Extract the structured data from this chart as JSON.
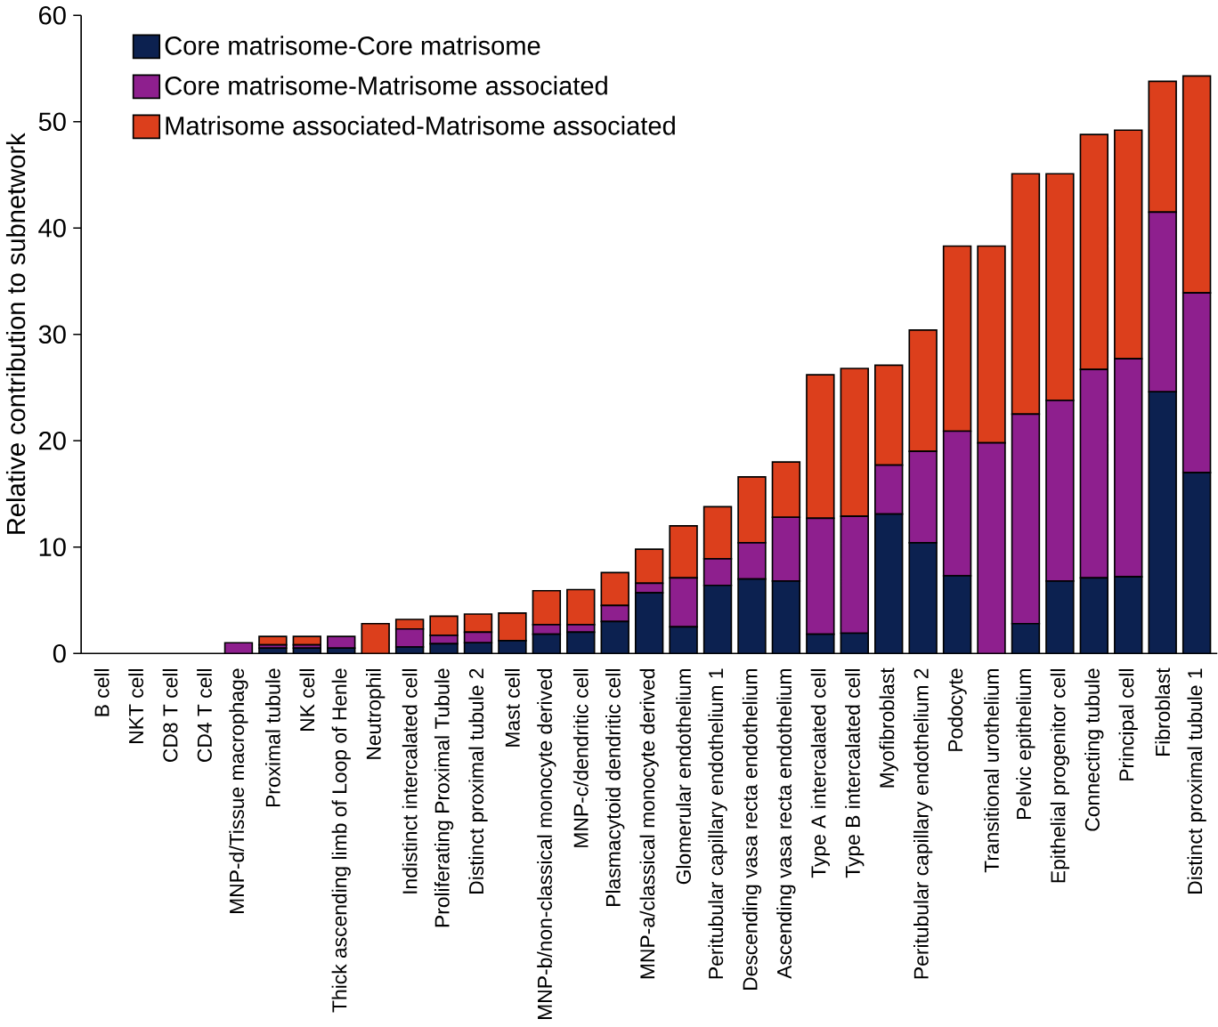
{
  "chart_data": {
    "type": "bar",
    "stacked": true,
    "ylabel": "Relative contribution to subnetwork",
    "categories": [
      "B cell",
      "NKT cell",
      "CD8 T cell",
      "CD4 T cell",
      "MNP-d/Tissue macrophage",
      "Proximal tubule",
      "NK cell",
      "Thick ascending limb of Loop of Henle",
      "Neutrophil",
      "Indistinct intercalated cell",
      "Proliferating Proximal Tubule",
      "Distinct proximal tubule 2",
      "Mast cell",
      "MNP-b/non-classical monocyte derived",
      "MNP-c/dendritic cell",
      "Plasmacytoid dendritic cell",
      "MNP-a/classical monocyte derived",
      "Glomerular endothelium",
      "Peritubular capillary endothelium 1",
      "Descending vasa recta endothelium",
      "Ascending vasa recta endothelium",
      "Type A intercalated cell",
      "Type B intercalated cell",
      "Myofibroblast",
      "Peritubular capillary endothelium 2",
      "Podocyte",
      "Transitional urothelium",
      "Pelvic epithelium",
      "Epithelial progenitor cell",
      "Connecting tubule",
      "Principal cell",
      "Fibroblast",
      "Distinct proximal tubule 1"
    ],
    "series": [
      {
        "name": "Core matrisome-Core matrisome",
        "color": "#0c2150",
        "values": [
          0,
          0,
          0,
          0,
          0,
          0.5,
          0.5,
          0.5,
          0,
          0.6,
          0.9,
          1.0,
          1.2,
          1.8,
          2.0,
          3.0,
          5.7,
          2.5,
          6.4,
          7.0,
          6.8,
          1.8,
          1.9,
          13.1,
          10.4,
          7.3,
          0,
          2.8,
          6.8,
          7.1,
          7.2,
          24.6,
          17.0
        ]
      },
      {
        "name": "Core matrisome-Matrisome associated",
        "color": "#8e1f8e",
        "values": [
          0,
          0,
          0,
          0,
          1.0,
          0.3,
          0.3,
          1.1,
          0,
          1.7,
          0.8,
          1.0,
          null,
          0.9,
          0.7,
          1.5,
          0.9,
          4.6,
          2.5,
          3.4,
          6.0,
          10.9,
          11.0,
          4.6,
          8.6,
          13.6,
          19.8,
          19.7,
          17.0,
          19.6,
          20.5,
          16.9,
          16.9
        ]
      },
      {
        "name": "Matrisome associated-Matrisome associated",
        "color": "#dc3f1c",
        "values": [
          0,
          0,
          0,
          0,
          0,
          0.8,
          0.8,
          0,
          2.8,
          0.9,
          1.8,
          1.7,
          2.6,
          3.2,
          3.3,
          3.1,
          3.2,
          4.9,
          4.9,
          6.2,
          5.2,
          13.5,
          13.9,
          9.4,
          11.4,
          17.4,
          18.5,
          22.6,
          21.3,
          22.1,
          21.5,
          12.3,
          20.4
        ]
      }
    ],
    "ylim": [
      0,
      60
    ],
    "yticks": [
      0,
      10,
      20,
      30,
      40,
      50,
      60
    ],
    "legend": "top left"
  }
}
